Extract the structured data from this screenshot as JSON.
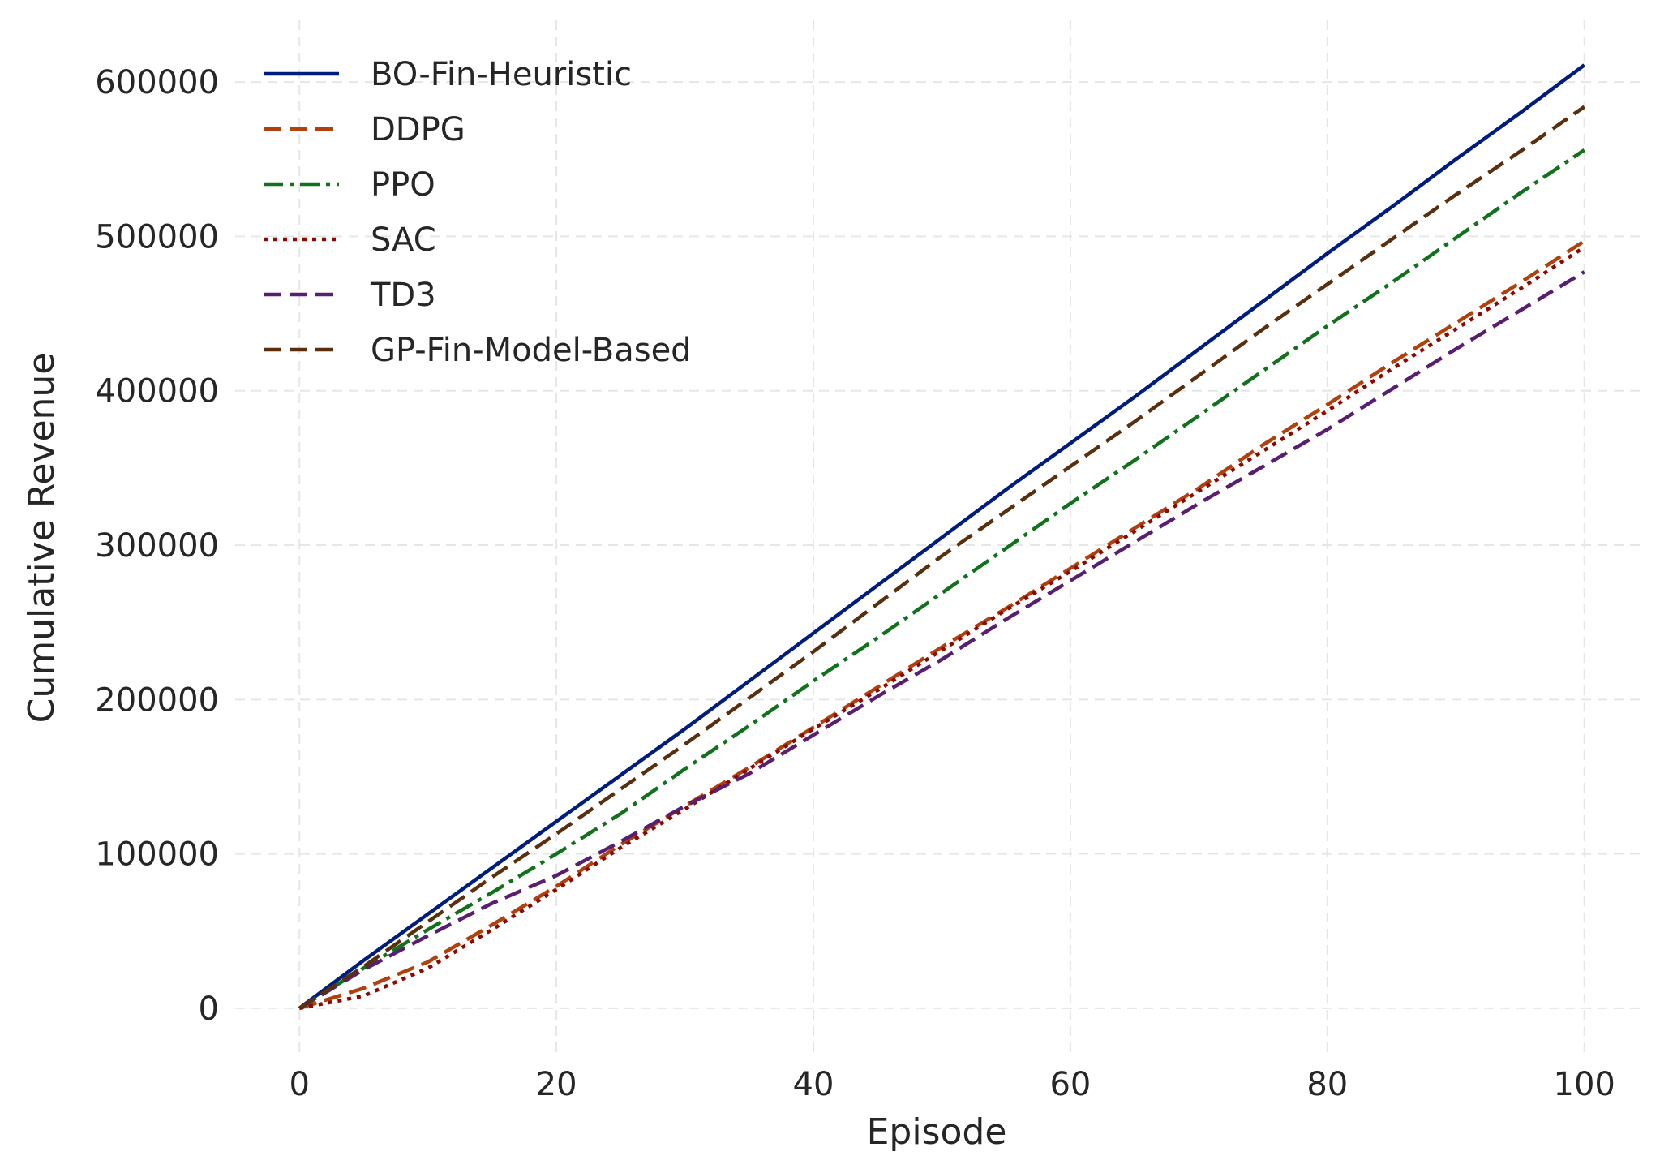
{
  "chart_data": {
    "type": "line",
    "title": "",
    "xlabel": "Episode",
    "ylabel": "Cumulative Revenue",
    "xlim": [
      -5,
      104.5
    ],
    "ylim": [
      -30000,
      640000
    ],
    "xticks": [
      0,
      20,
      40,
      60,
      80,
      100
    ],
    "xtick_labels": [
      "0",
      "20",
      "40",
      "60",
      "80",
      "100"
    ],
    "yticks": [
      0,
      100000,
      200000,
      300000,
      400000,
      500000,
      600000
    ],
    "ytick_labels": [
      "0",
      "100000",
      "200000",
      "300000",
      "400000",
      "500000",
      "600000"
    ],
    "grid": true,
    "legend_position": "top-left",
    "x": [
      0,
      5,
      10,
      15,
      20,
      25,
      30,
      35,
      40,
      45,
      50,
      55,
      60,
      65,
      70,
      75,
      80,
      85,
      90,
      95,
      100
    ],
    "series": [
      {
        "name": "BO-Fin-Heuristic",
        "color": "#001c7f",
        "style": "solid",
        "values": [
          0,
          31000,
          61000,
          91000,
          121000,
          151000,
          181000,
          212000,
          243000,
          274000,
          305000,
          336000,
          366000,
          396000,
          427000,
          458000,
          489000,
          519000,
          550000,
          580000,
          611000
        ]
      },
      {
        "name": "DDPG",
        "color": "#b1400d",
        "style": "dashed",
        "values": [
          0,
          13000,
          30000,
          54000,
          79000,
          106000,
          131000,
          156000,
          182000,
          208000,
          234000,
          259000,
          285000,
          311000,
          337000,
          365000,
          391000,
          418000,
          444000,
          470000,
          497000
        ]
      },
      {
        "name": "PPO",
        "color": "#12711c",
        "style": "dashdot",
        "values": [
          0,
          26000,
          51000,
          75000,
          100000,
          126000,
          155000,
          183000,
          212000,
          240000,
          269000,
          298000,
          327000,
          355000,
          384000,
          413000,
          442000,
          470000,
          499000,
          528000,
          556000
        ]
      },
      {
        "name": "SAC",
        "color": "#8c0800",
        "style": "dotted",
        "values": [
          0,
          8000,
          26000,
          51000,
          77000,
          104000,
          129000,
          155000,
          181000,
          206000,
          232000,
          258000,
          283000,
          309000,
          335000,
          361000,
          387000,
          414000,
          440000,
          466000,
          493000
        ]
      },
      {
        "name": "TD3",
        "color": "#591e71",
        "style": "dashed",
        "values": [
          0,
          25000,
          47000,
          68000,
          86000,
          108000,
          131000,
          152000,
          177000,
          202000,
          226000,
          252000,
          277000,
          302000,
          327000,
          351000,
          375000,
          401000,
          427000,
          452000,
          477000
        ]
      },
      {
        "name": "GP-Fin-Model-Based",
        "color": "#592f0d",
        "style": "dashed",
        "values": [
          0,
          27000,
          56000,
          85000,
          113000,
          142000,
          171000,
          201000,
          231000,
          262000,
          293000,
          322000,
          351000,
          380000,
          410000,
          440000,
          469000,
          498000,
          527000,
          555000,
          584000
        ]
      }
    ]
  }
}
